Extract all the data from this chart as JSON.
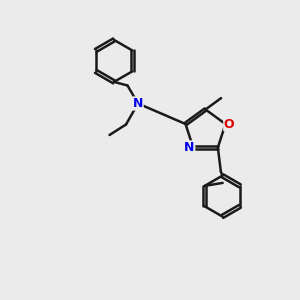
{
  "bg_color": "#ebebeb",
  "bond_color": "#1a1a1a",
  "N_color": "#0000ee",
  "O_color": "#dd0000",
  "lw": 1.8,
  "doffset": 0.055,
  "figsize": [
    3.0,
    3.0
  ],
  "dpi": 100,
  "xlim": [
    0,
    10
  ],
  "ylim": [
    0,
    10
  ]
}
